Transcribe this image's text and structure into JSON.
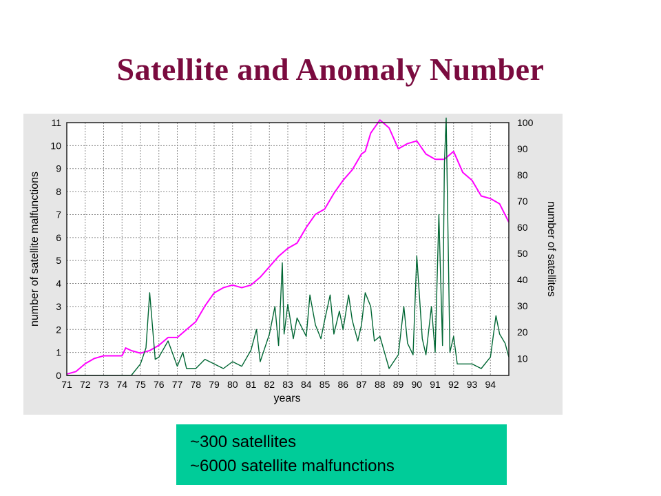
{
  "page": {
    "title": "Satellite and Anomaly Number"
  },
  "note": {
    "lines": [
      "~300 satellites",
      "~6000 satellite malfunctions"
    ]
  },
  "colors": {
    "title": "#7a0b3f",
    "satellites": "#ff00ff",
    "malfunctions": "#006633",
    "note_bg": "#00cc99",
    "panel_bg": "#e6e6e6"
  },
  "chart_data": {
    "type": "line",
    "xlabel": "years",
    "ylabel_left": "number of satellite malfunctions",
    "ylabel_right": "number of satellites",
    "x_ticks": [
      "71",
      "72",
      "73",
      "74",
      "75",
      "76",
      "77",
      "78",
      "79",
      "80",
      "81",
      "82",
      "83",
      "84",
      "85",
      "86",
      "87",
      "88",
      "89",
      "90",
      "91",
      "92",
      "93",
      "94"
    ],
    "xlim": [
      71,
      95
    ],
    "y_left_ticks": [
      0,
      1,
      2,
      3,
      4,
      5,
      6,
      7,
      8,
      9,
      10,
      11
    ],
    "ylim_left": [
      0,
      11
    ],
    "y_right_ticks": [
      10,
      20,
      30,
      40,
      50,
      60,
      70,
      80,
      90,
      100
    ],
    "ylim_right": [
      3.5,
      100
    ],
    "grid": true,
    "series": [
      {
        "axis": "right",
        "x": [
          71.0,
          71.5,
          72.0,
          72.5,
          73.0,
          73.5,
          74.0,
          74.2,
          74.5,
          75.0,
          75.5,
          76.0,
          76.5,
          77.0,
          77.5,
          78.0,
          78.5,
          79.0,
          79.5,
          80.0,
          80.5,
          81.0,
          81.5,
          82.0,
          82.5,
          83.0,
          83.5,
          84.0,
          84.5,
          85.0,
          85.5,
          86.0,
          86.5,
          87.0,
          87.2,
          87.5,
          88.0,
          88.5,
          89.0,
          89.5,
          90.0,
          90.5,
          91.0,
          91.5,
          92.0,
          92.5,
          93.0,
          93.5,
          94.0,
          94.5,
          95.0
        ],
        "y": [
          4,
          5,
          8,
          10,
          11,
          11,
          11,
          14,
          13,
          12,
          13,
          15,
          18,
          18,
          21,
          24,
          30,
          35,
          37,
          38,
          37,
          38,
          41,
          45,
          49,
          52,
          54,
          60,
          65,
          67,
          73,
          78,
          82,
          88,
          89,
          96,
          101,
          98,
          90,
          92,
          93,
          88,
          86,
          86,
          89,
          81,
          78,
          72,
          71,
          69,
          62
        ]
      },
      {
        "axis": "left",
        "x": [
          71.0,
          71.5,
          72.0,
          72.5,
          73.0,
          73.5,
          74.0,
          74.5,
          75.0,
          75.3,
          75.5,
          75.8,
          76.0,
          76.5,
          77.0,
          77.3,
          77.5,
          78.0,
          78.5,
          79.0,
          79.5,
          80.0,
          80.5,
          81.0,
          81.3,
          81.5,
          82.0,
          82.3,
          82.5,
          82.7,
          82.8,
          83.0,
          83.3,
          83.5,
          84.0,
          84.2,
          84.5,
          84.8,
          85.0,
          85.3,
          85.5,
          85.8,
          86.0,
          86.3,
          86.5,
          86.8,
          87.0,
          87.2,
          87.5,
          87.7,
          88.0,
          88.5,
          89.0,
          89.3,
          89.5,
          89.8,
          90.0,
          90.3,
          90.5,
          90.8,
          91.0,
          91.2,
          91.4,
          91.5,
          91.6,
          91.8,
          92.0,
          92.2,
          92.5,
          93.0,
          93.5,
          94.0,
          94.3,
          94.5,
          94.8,
          95.0
        ],
        "y": [
          0,
          0,
          0,
          0,
          0,
          0,
          0,
          0,
          0.5,
          1.2,
          3.6,
          0.7,
          0.8,
          1.5,
          0.4,
          1.0,
          0.3,
          0.3,
          0.7,
          0.5,
          0.3,
          0.6,
          0.4,
          1.1,
          2.0,
          0.6,
          1.8,
          3.0,
          1.3,
          4.9,
          1.8,
          3.1,
          1.6,
          2.5,
          1.7,
          3.5,
          2.2,
          1.6,
          2.4,
          3.5,
          1.8,
          2.8,
          2.0,
          3.5,
          2.4,
          1.5,
          2.2,
          3.6,
          3.0,
          1.5,
          1.7,
          0.3,
          0.9,
          3.0,
          1.4,
          0.9,
          5.2,
          1.6,
          0.9,
          3.0,
          1.0,
          7.0,
          1.3,
          9.2,
          11.2,
          1.0,
          1.7,
          0.5,
          0.5,
          0.5,
          0.3,
          0.8,
          2.6,
          1.8,
          1.4,
          0.8
        ]
      }
    ]
  }
}
